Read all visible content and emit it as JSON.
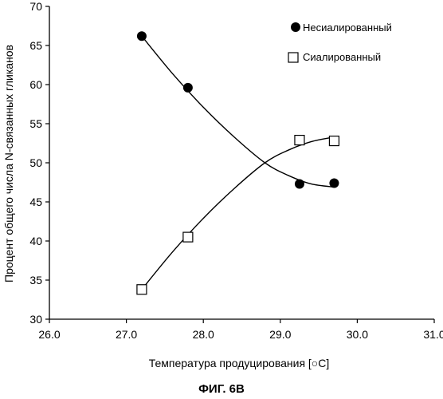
{
  "chart_data": {
    "type": "scatter",
    "xlabel": "Температура продуцирования [○C]",
    "ylabel": "Процент общего числа N-связанных гликанов",
    "xlim": [
      26.0,
      31.0
    ],
    "ylim": [
      30,
      70
    ],
    "x_ticks": [
      "26.0",
      "27.0",
      "28.0",
      "29.0",
      "30.0",
      "31.0"
    ],
    "y_ticks": [
      "30",
      "35",
      "40",
      "45",
      "50",
      "55",
      "60",
      "65",
      "70"
    ],
    "grid": false,
    "legend_position": "top-right",
    "series": [
      {
        "name": "Несиалированный",
        "marker": "filled-circle",
        "color": "#000000",
        "points": [
          [
            27.2,
            66.2
          ],
          [
            27.8,
            59.6
          ],
          [
            29.25,
            47.3
          ],
          [
            29.7,
            47.4
          ]
        ],
        "trend": [
          [
            27.2,
            66.2
          ],
          [
            27.6,
            61.4
          ],
          [
            28.0,
            57.1
          ],
          [
            28.4,
            53.3
          ],
          [
            28.8,
            50.0
          ],
          [
            29.1,
            48.4
          ],
          [
            29.4,
            47.3
          ],
          [
            29.7,
            46.9
          ]
        ]
      },
      {
        "name": "Сиалированный",
        "marker": "open-square",
        "color": "#000000",
        "points": [
          [
            27.2,
            33.8
          ],
          [
            27.8,
            40.5
          ],
          [
            29.25,
            52.9
          ],
          [
            29.7,
            52.8
          ]
        ],
        "trend": [
          [
            27.2,
            33.8
          ],
          [
            27.6,
            38.6
          ],
          [
            28.0,
            42.9
          ],
          [
            28.4,
            46.7
          ],
          [
            28.8,
            50.0
          ],
          [
            29.1,
            51.6
          ],
          [
            29.4,
            52.7
          ],
          [
            29.7,
            53.3
          ]
        ]
      }
    ]
  },
  "caption": "ФИГ. 6B"
}
